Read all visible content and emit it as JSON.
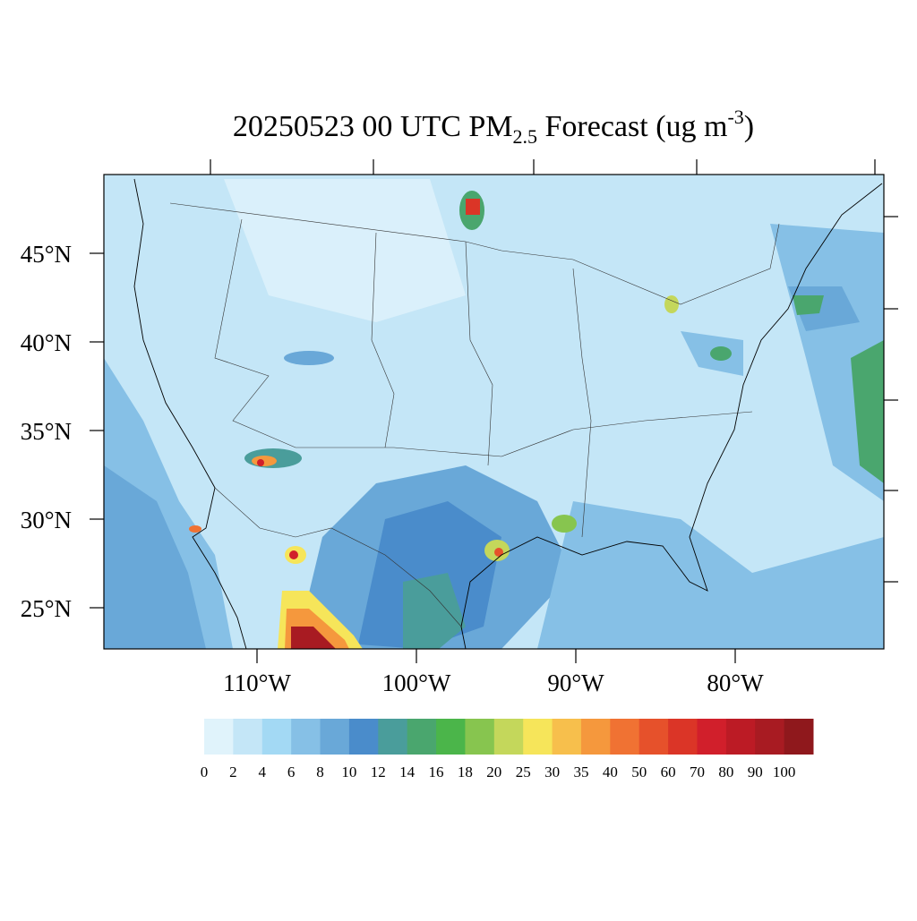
{
  "map": {
    "title": {
      "main": "20250523 00 UTC PM",
      "sub": "2.5",
      "middle": " Forecast (ug m",
      "sup": "-3",
      "end": ")"
    },
    "lat_labels": [
      "45°N",
      "40°N",
      "35°N",
      "30°N",
      "25°N"
    ],
    "lon_labels": [
      "110°W",
      "100°W",
      "90°W",
      "80°W"
    ],
    "colorbar": {
      "levels": [
        0,
        2,
        4,
        6,
        8,
        10,
        12,
        14,
        16,
        18,
        20,
        25,
        30,
        35,
        40,
        50,
        60,
        70,
        80,
        90,
        100
      ],
      "colors": [
        "#e0f3fb",
        "#c4e6f7",
        "#a3d9f4",
        "#86c0e6",
        "#69a8d8",
        "#4a8ccb",
        "#4a9d9b",
        "#4aa66e",
        "#4bb54a",
        "#87c54f",
        "#c4d75b",
        "#f6e55a",
        "#f7bf4c",
        "#f5983d",
        "#f07233",
        "#e6512b",
        "#db3527",
        "#d11f2b",
        "#bc1b25",
        "#a81b22",
        "#8f181c"
      ]
    }
  }
}
